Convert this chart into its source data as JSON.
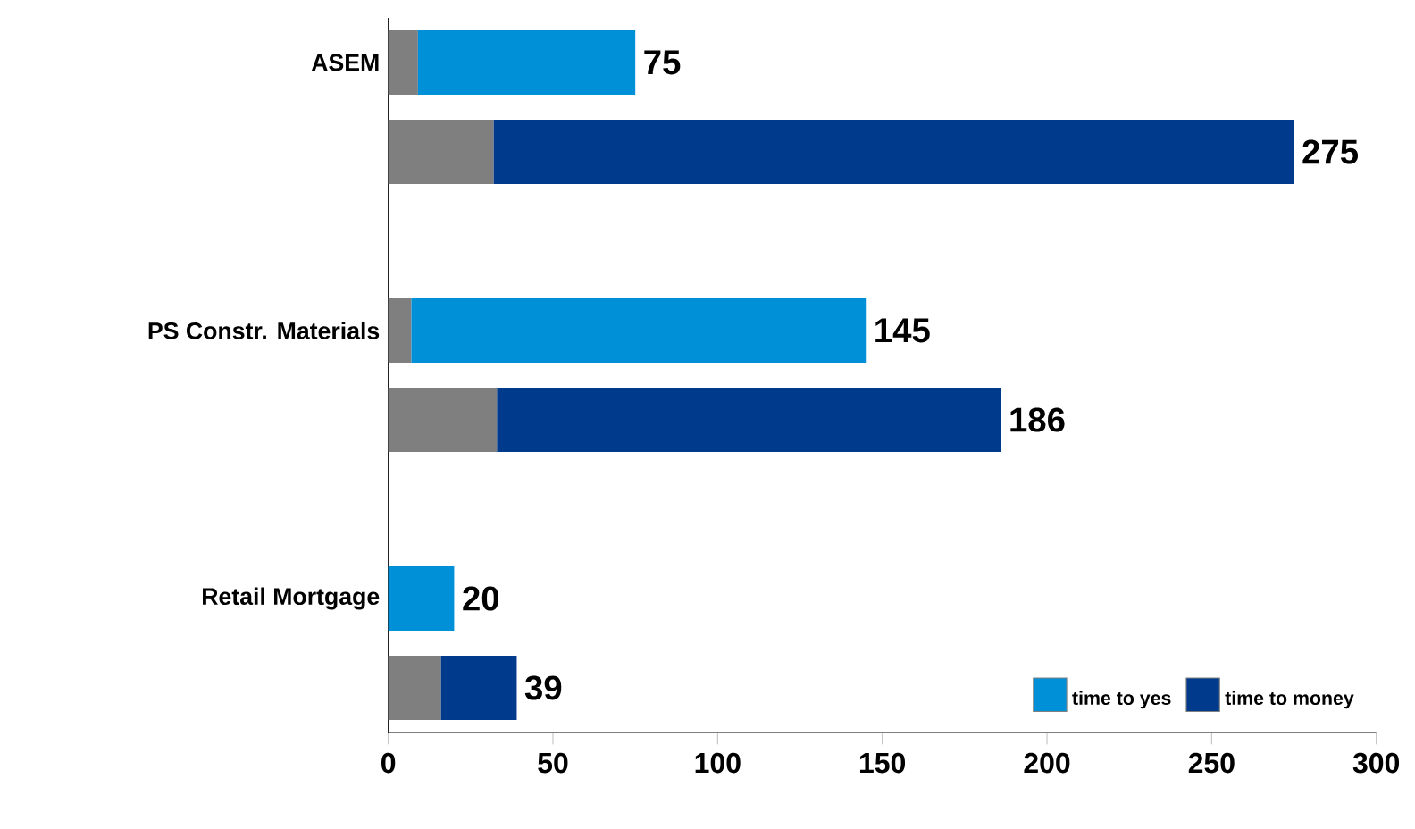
{
  "chart_data": {
    "type": "bar",
    "orientation": "horizontal",
    "stacked": true,
    "categories": [
      "ASEM",
      null,
      null,
      "PS Constr. Materials",
      null,
      null,
      "Retail Mortgage",
      null
    ],
    "series": [
      {
        "color": "#7f7f7f",
        "values": [
          9,
          32,
          null,
          7,
          33,
          null,
          0,
          16
        ]
      },
      {
        "name": "time to yes",
        "color": "#0090d8",
        "values": [
          66,
          null,
          null,
          138,
          null,
          null,
          20,
          null
        ]
      },
      {
        "name": "time to money",
        "color": "#003a8c",
        "values": [
          null,
          243,
          null,
          null,
          153,
          null,
          null,
          23
        ]
      }
    ],
    "totals": [
      "75",
      "275",
      null,
      "145",
      "186",
      null,
      "20",
      "39"
    ],
    "xlim": [
      0,
      300
    ],
    "xticks": [
      0,
      50,
      100,
      150,
      200,
      250,
      300
    ],
    "legend": "bottom right",
    "grid": false
  }
}
